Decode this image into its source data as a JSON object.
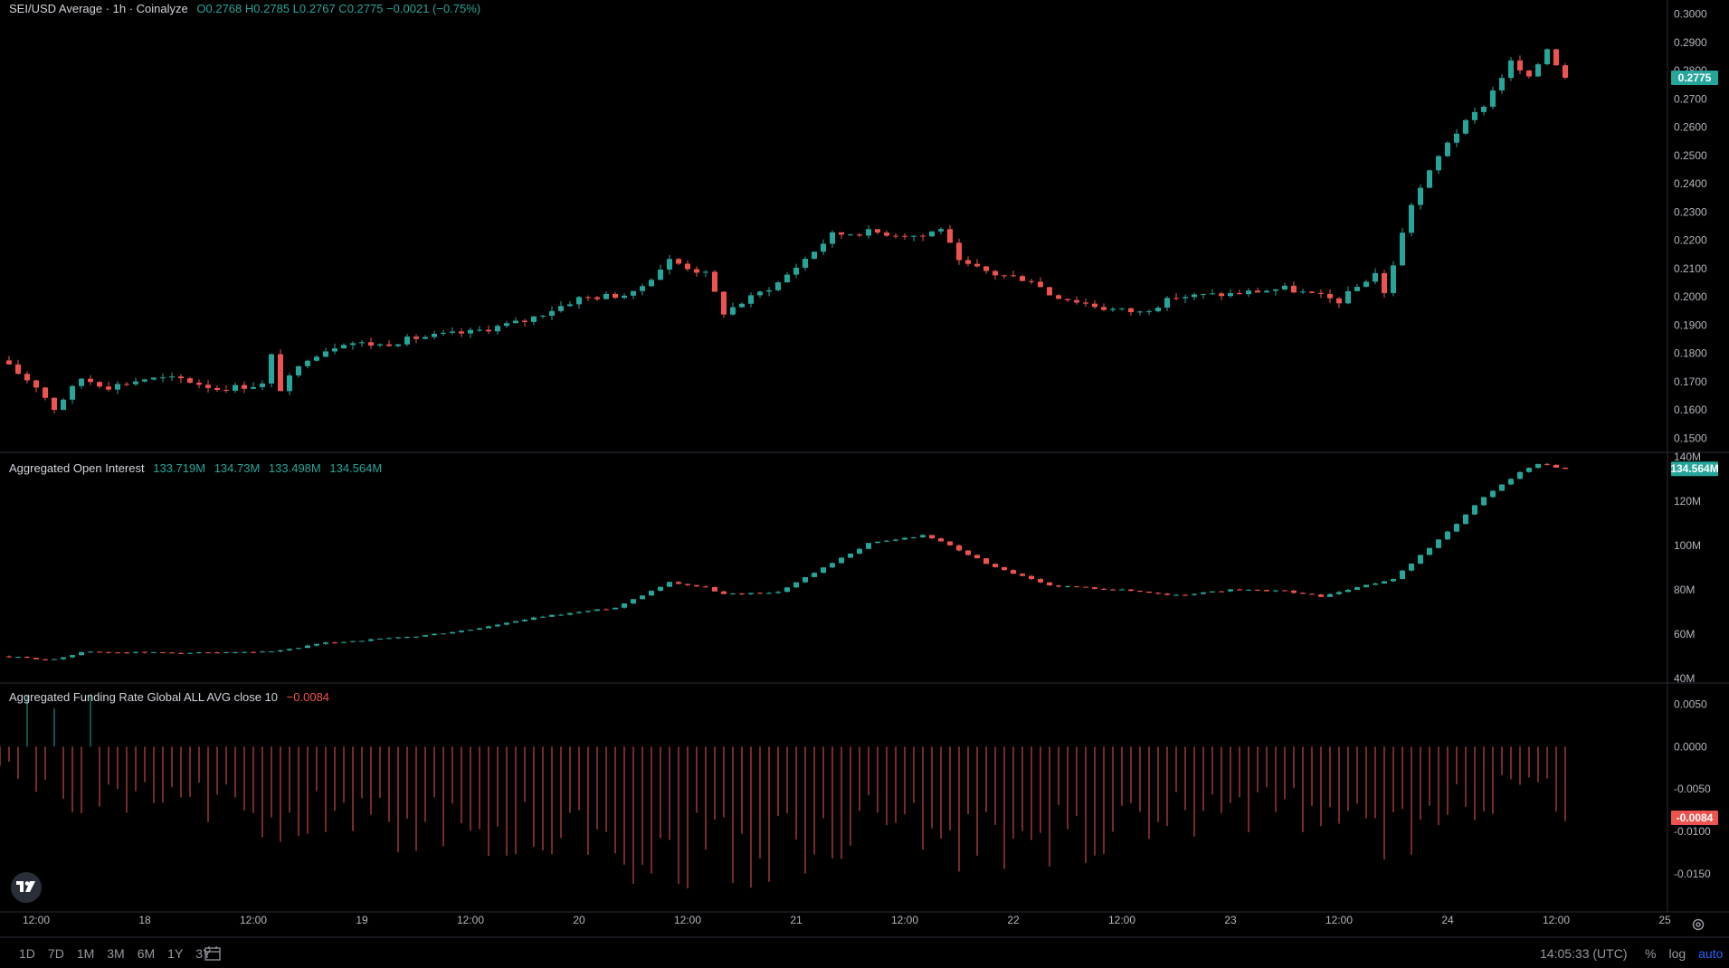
{
  "colors": {
    "up": "#26a69a",
    "down": "#ef5350",
    "axis_text": "#b2b5be",
    "grid_sep": "#2a2e39",
    "badge_text": "#ffffff"
  },
  "main_pane": {
    "title": "SEI/USD Average · 1h · Coinalyze",
    "ohlc": [
      {
        "label": "O",
        "value": "0.2768"
      },
      {
        "label": "H",
        "value": "0.2785"
      },
      {
        "label": "L",
        "value": "0.2767"
      },
      {
        "label": "C",
        "value": "0.2775"
      }
    ],
    "change": "−0.0021 (−0.75%)",
    "last_price": "0.2775"
  },
  "oi_pane": {
    "title": "Aggregated Open Interest",
    "values": [
      "133.719M",
      "134.73M",
      "133.498M",
      "134.564M"
    ],
    "last_value": "134.564M"
  },
  "fr_pane": {
    "title": "Aggregated Funding Rate Global ALL AVG close 10",
    "value": "−0.0084",
    "last_value": "-0.0084"
  },
  "time_labels": [
    "12:00",
    "18",
    "12:00",
    "19",
    "12:00",
    "20",
    "12:00",
    "21",
    "12:00",
    "22",
    "12:00",
    "23",
    "12:00",
    "24",
    "12:00",
    "25"
  ],
  "bottom_bar": {
    "ranges": [
      "1D",
      "7D",
      "1M",
      "3M",
      "6M",
      "1Y",
      "3Y"
    ],
    "calendar_icon": "calendar-icon",
    "clock": "14:05:33 (UTC)",
    "options": [
      "%",
      "log",
      "auto"
    ],
    "active_option": "auto",
    "settings_icon": "gear-icon"
  },
  "chart_data": [
    {
      "type": "candlestick",
      "title": "SEI/USD Average · 1h · Coinalyze",
      "x_range": [
        "17 08:00",
        "25 00:00"
      ],
      "ylim": [
        0.145,
        0.305
      ],
      "y_ticks": [
        "0.1500",
        "0.1600",
        "0.1700",
        "0.1800",
        "0.1900",
        "0.2000",
        "0.2100",
        "0.2200",
        "0.2300",
        "0.2400",
        "0.2500",
        "0.2600",
        "0.2700",
        "0.2800",
        "0.2900",
        "0.3000"
      ],
      "close_path": [
        [
          "17 08:00",
          0.1775
        ],
        [
          "17 12:00",
          0.1685
        ],
        [
          "17 14:00",
          0.1605
        ],
        [
          "17 17:00",
          0.1712
        ],
        [
          "17 20:00",
          0.1682
        ],
        [
          "18 00:00",
          0.171
        ],
        [
          "18 04:00",
          0.171
        ],
        [
          "18 08:00",
          0.1675
        ],
        [
          "18 13:00",
          0.169
        ],
        [
          "18 14:00",
          0.179
        ],
        [
          "18 15:00",
          0.1675
        ],
        [
          "18 18:00",
          0.1785
        ],
        [
          "18 22:00",
          0.184
        ],
        [
          "19 02:00",
          0.183
        ],
        [
          "19 06:00",
          0.1855
        ],
        [
          "19 12:00",
          0.1875
        ],
        [
          "19 18:00",
          0.1915
        ],
        [
          "20 00:00",
          0.1995
        ],
        [
          "20 06:00",
          0.201
        ],
        [
          "20 10:00",
          0.213
        ],
        [
          "20 14:00",
          0.208
        ],
        [
          "20 16:00",
          0.1945
        ],
        [
          "20 22:00",
          0.205
        ],
        [
          "21 04:00",
          0.222
        ],
        [
          "21 08:00",
          0.223
        ],
        [
          "21 14:00",
          0.2215
        ],
        [
          "21 16:00",
          0.2245
        ],
        [
          "21 18:00",
          0.212
        ],
        [
          "21 22:00",
          0.208
        ],
        [
          "22 02:00",
          0.206
        ],
        [
          "22 04:00",
          0.201
        ],
        [
          "22 10:00",
          0.196
        ],
        [
          "22 14:00",
          0.1945
        ],
        [
          "22 18:00",
          0.2
        ],
        [
          "23 00:00",
          0.201
        ],
        [
          "23 06:00",
          0.203
        ],
        [
          "23 12:00",
          0.1985
        ],
        [
          "23 16:00",
          0.2085
        ],
        [
          "23 17:00",
          0.201
        ],
        [
          "23 20:00",
          0.233
        ],
        [
          "24 00:00",
          0.255
        ],
        [
          "24 04:00",
          0.268
        ],
        [
          "24 07:00",
          0.283
        ],
        [
          "24 09:00",
          0.277
        ],
        [
          "24 11:00",
          0.288
        ],
        [
          "24 13:00",
          0.2775
        ]
      ],
      "last_value": 0.2775
    },
    {
      "type": "candlestick",
      "title": "Aggregated Open Interest",
      "units": "USD",
      "ylim": [
        38,
        142
      ],
      "y_ticks": [
        "40M",
        "60M",
        "80M",
        "100M",
        "120M",
        "140M"
      ],
      "close_path": [
        [
          "17 08:00",
          50
        ],
        [
          "17 14:00",
          48.5
        ],
        [
          "17 17:00",
          52
        ],
        [
          "18 08:00",
          51.5
        ],
        [
          "18 14:00",
          52
        ],
        [
          "18 20:00",
          56
        ],
        [
          "19 06:00",
          59
        ],
        [
          "19 12:00",
          62
        ],
        [
          "19 20:00",
          68
        ],
        [
          "20 04:00",
          72
        ],
        [
          "20 10:00",
          83.5
        ],
        [
          "20 14:00",
          81
        ],
        [
          "20 16:00",
          78
        ],
        [
          "20 22:00",
          79
        ],
        [
          "21 04:00",
          92
        ],
        [
          "21 08:00",
          101
        ],
        [
          "21 14:00",
          104.5
        ],
        [
          "21 16:00",
          102
        ],
        [
          "21 22:00",
          90
        ],
        [
          "22 04:00",
          82
        ],
        [
          "22 12:00",
          80
        ],
        [
          "22 18:00",
          77.5
        ],
        [
          "23 00:00",
          80
        ],
        [
          "23 06:00",
          79.5
        ],
        [
          "23 10:00",
          77
        ],
        [
          "23 18:00",
          85
        ],
        [
          "24 00:00",
          106
        ],
        [
          "24 04:00",
          122
        ],
        [
          "24 08:00",
          133
        ],
        [
          "24 10:00",
          137
        ],
        [
          "24 13:00",
          134.564
        ]
      ],
      "last_value": 134.564
    },
    {
      "type": "histogram",
      "title": "Aggregated Funding Rate Global ALL AVG close 10",
      "ylim": [
        -0.0195,
        0.0075
      ],
      "y_ticks": [
        "0.0050",
        "0.0000",
        "-0.0050",
        "-0.0100",
        "-0.0150"
      ],
      "profile": [
        [
          "17 08:00",
          -0.0035
        ],
        [
          "17 14:00",
          -0.006
        ],
        [
          "17 16:00",
          -0.01
        ],
        [
          "18 04:00",
          -0.008
        ],
        [
          "18 16:00",
          -0.011
        ],
        [
          "19 04:00",
          -0.012
        ],
        [
          "19 12:00",
          -0.014
        ],
        [
          "19 20:00",
          -0.013
        ],
        [
          "20 08:00",
          -0.016
        ],
        [
          "20 14:00",
          -0.0168
        ],
        [
          "21 00:00",
          -0.015
        ],
        [
          "21 12:00",
          -0.0115
        ],
        [
          "21 20:00",
          -0.0165
        ],
        [
          "22 08:00",
          -0.0135
        ],
        [
          "22 20:00",
          -0.011
        ],
        [
          "23 06:00",
          -0.009
        ],
        [
          "23 18:00",
          -0.014
        ],
        [
          "24 04:00",
          -0.008
        ],
        [
          "24 10:00",
          -0.006
        ],
        [
          "24 13:00",
          -0.0084
        ]
      ],
      "positive_spikes": [
        [
          "17 11:00",
          0.006
        ],
        [
          "17 14:00",
          0.0045
        ],
        [
          "17 18:00",
          0.0062
        ]
      ],
      "last_value": -0.0084
    }
  ]
}
